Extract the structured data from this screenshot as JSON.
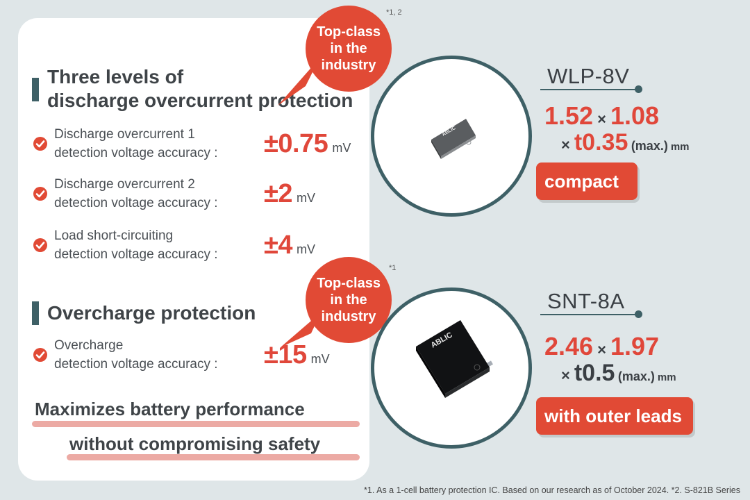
{
  "left_panel": {
    "section1": {
      "title_line1": "Three levels of",
      "title_line2": "discharge overcurrent protection",
      "bubble": {
        "line1": "Top-class",
        "line2": "in the",
        "line3": "industry",
        "note": "*1, 2"
      },
      "rows": [
        {
          "label_line1": "Discharge overcurrent 1",
          "label_line2": "detection voltage accuracy :",
          "value": "±0.75",
          "unit": "mV"
        },
        {
          "label_line1": "Discharge overcurrent 2",
          "label_line2": "detection voltage accuracy :",
          "value": "±2",
          "unit": "mV"
        },
        {
          "label_line1": "Load short-circuiting",
          "label_line2": "detection voltage accuracy :",
          "value": "±4",
          "unit": "mV"
        }
      ]
    },
    "section2": {
      "title": "Overcharge protection",
      "bubble": {
        "line1": "Top-class",
        "line2": "in the",
        "line3": "industry",
        "note": "*1"
      },
      "rows": [
        {
          "label_line1": "Overcharge",
          "label_line2": "detection voltage accuracy :",
          "value": "±15",
          "unit": "mV"
        }
      ]
    },
    "tagline": {
      "line1": "Maximizes battery performance",
      "line2": "without compromising safety"
    }
  },
  "packages": [
    {
      "name": "WLP-8V",
      "dim1": "1.52",
      "dim2": "1.08",
      "dim3": "t0.35",
      "max": "(max.)",
      "mm": "mm",
      "badge": "compact",
      "chip_logo": "ABLIC"
    },
    {
      "name": "SNT-8A",
      "dim1": "2.46",
      "dim2": "1.97",
      "dim3": "t0.5",
      "max": "(max.)",
      "mm": "mm",
      "badge": "with outer leads",
      "chip_logo": "ABLIC"
    }
  ],
  "footnote": "*1. As a 1-cell battery protection IC. Based on our research as of October 2024.   *2. S-821B Series",
  "colors": {
    "accent": "#e14a35",
    "teal": "#3e6066",
    "background": "#dfe6e8"
  }
}
